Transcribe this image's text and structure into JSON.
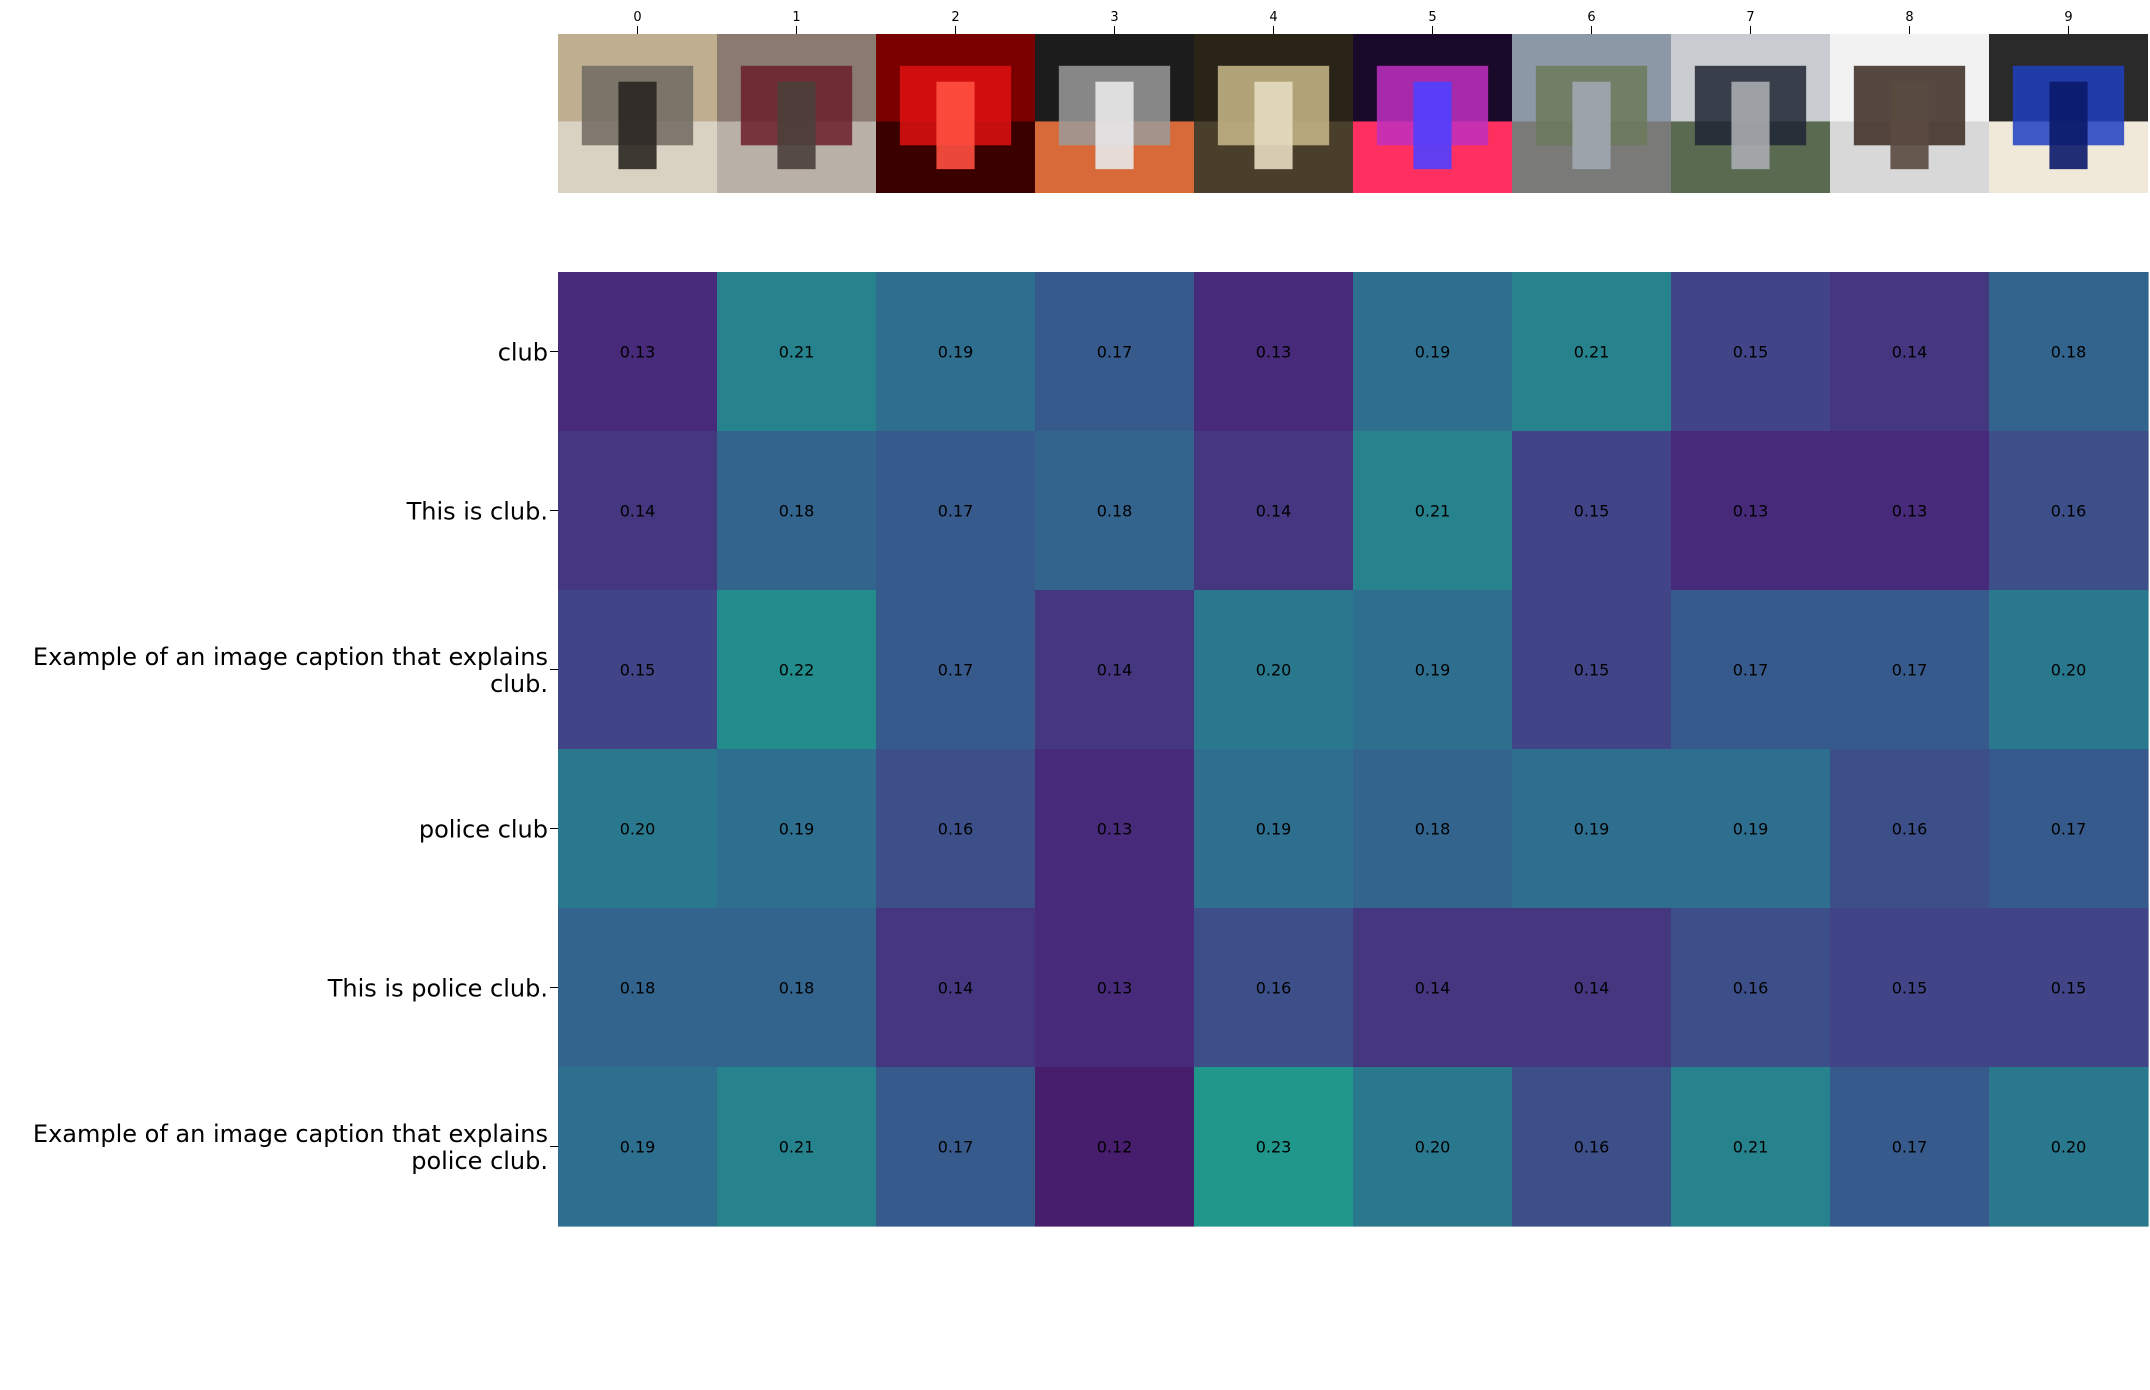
{
  "chart_data": {
    "type": "heatmap",
    "title": "",
    "xlabel": "",
    "ylabel": "",
    "x_tick_labels": [
      "0",
      "1",
      "2",
      "3",
      "4",
      "5",
      "6",
      "7",
      "8",
      "9"
    ],
    "y_tick_labels": [
      [
        "club"
      ],
      [
        "This is club."
      ],
      [
        "Example of an image caption that explains",
        "club."
      ],
      [
        "police club"
      ],
      [
        "This is police club."
      ],
      [
        "Example of an image caption that explains",
        "police club."
      ]
    ],
    "values": [
      [
        0.13,
        0.21,
        0.19,
        0.17,
        0.13,
        0.19,
        0.21,
        0.15,
        0.14,
        0.18
      ],
      [
        0.14,
        0.18,
        0.17,
        0.18,
        0.14,
        0.21,
        0.15,
        0.13,
        0.13,
        0.16
      ],
      [
        0.15,
        0.22,
        0.17,
        0.14,
        0.2,
        0.19,
        0.15,
        0.17,
        0.17,
        0.2
      ],
      [
        0.2,
        0.19,
        0.16,
        0.13,
        0.19,
        0.18,
        0.19,
        0.19,
        0.16,
        0.17
      ],
      [
        0.18,
        0.18,
        0.14,
        0.13,
        0.16,
        0.14,
        0.14,
        0.16,
        0.15,
        0.15
      ],
      [
        0.19,
        0.21,
        0.17,
        0.12,
        0.23,
        0.2,
        0.16,
        0.21,
        0.17,
        0.2
      ]
    ],
    "colormap": "viridis",
    "color_range": [
      0.1,
      0.3
    ],
    "image_thumbnails": [
      {
        "name": "hallway-person-thumbnail",
        "colors": [
          "#bfae8f",
          "#6e6a62",
          "#d9d2c2",
          "#2b2622"
        ]
      },
      {
        "name": "club-awning-thumbnail",
        "colors": [
          "#8a7a70",
          "#6b1f2a",
          "#b9b0a8",
          "#4a3f3a"
        ]
      },
      {
        "name": "red-room-thumbnail",
        "colors": [
          "#7a0000",
          "#e01010",
          "#3a0000",
          "#ff5040"
        ]
      },
      {
        "name": "golf-clubs-thumbnail",
        "colors": [
          "#1c1c1c",
          "#9a9a9a",
          "#d86a3a",
          "#e8e8e8"
        ]
      },
      {
        "name": "police-poster-thumbnail",
        "colors": [
          "#2a2418",
          "#c9b98a",
          "#4a3f2a",
          "#e6dcc0"
        ]
      },
      {
        "name": "nightclub-lights-thumbnail",
        "colors": [
          "#1a0a2a",
          "#c030c0",
          "#ff3060",
          "#5040ff"
        ]
      },
      {
        "name": "village-road-thumbnail",
        "colors": [
          "#8c98a6",
          "#6b7a5a",
          "#7a7a78",
          "#a0a8b0"
        ]
      },
      {
        "name": "police-parade-thumbnail",
        "colors": [
          "#c8ccd0",
          "#1e2634",
          "#5a6a50",
          "#a8acb0"
        ]
      },
      {
        "name": "baton-thumbnail",
        "colors": [
          "#f2f2f2",
          "#3a2a22",
          "#d8d8d8",
          "#5a4a40"
        ]
      },
      {
        "name": "blue-shuttlecocks-thumbnail",
        "colors": [
          "#2a2a2a",
          "#1f3fbf",
          "#f0e8d8",
          "#0a1a6a"
        ]
      }
    ]
  }
}
